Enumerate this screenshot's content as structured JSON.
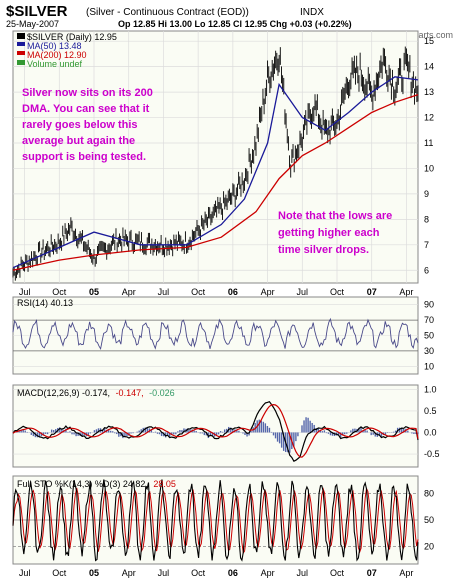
{
  "header": {
    "symbol": "$SILVER",
    "description": "(Silver - Continuous Contract (EOD))",
    "exchange": "INDX",
    "date": "25-May-2007",
    "quote": "Op 12.85  Hi 13.00  Lo 12.85  Cl 12.95  Chg +0.03 (+0.22%)",
    "watermark": "© StockCharts.com",
    "chg_color": "#0000cc"
  },
  "price_panel": {
    "legend": [
      {
        "text": "$SILVER (Daily) 12.95",
        "color": "#000000"
      },
      {
        "text": "MA(50) 13.48",
        "color": "#1a1a99"
      },
      {
        "text": "MA(200) 12.90",
        "color": "#cc0000"
      },
      {
        "text": "Volume undef",
        "color": "#339933"
      }
    ],
    "annotation_1": [
      "Silver now sits on its 200",
      "DMA. You can see that it",
      "rarely goes below this",
      "average but again the",
      "support is being tested."
    ],
    "annotation_2": [
      "Note that the lows are",
      "getting higher each",
      "time silver drops."
    ],
    "annotation_color": "#cc00cc",
    "y_ticks": [
      "6",
      "7",
      "8",
      "9",
      "10",
      "11",
      "12",
      "13",
      "14",
      "15"
    ]
  },
  "x_labels": [
    "Jul",
    "Oct",
    "05",
    "Apr",
    "Jul",
    "Oct",
    "06",
    "Apr",
    "Jul",
    "Oct",
    "07",
    "Apr"
  ],
  "rsi_panel": {
    "label": "RSI(14) 40.13",
    "y_ticks": [
      "90",
      "70",
      "50",
      "30",
      "10"
    ]
  },
  "macd_panel": {
    "label_prefix": "MACD(12,26,9) -0.174,",
    "label_signal": "-0.147,",
    "label_hist": "-0.026",
    "signal_color": "#cc0000",
    "hist_color": "#339966",
    "y_ticks": [
      "1.0",
      "0.5",
      "0.0",
      "-0.5"
    ]
  },
  "sto_panel": {
    "label_prefix": "Full STO %K(14,3) %D(3) 24.82,",
    "label_d": "28.05",
    "d_color": "#cc0000",
    "y_ticks": [
      "80",
      "50",
      "20"
    ]
  },
  "chart_data": {
    "type": "line",
    "title": "$SILVER (Silver - Continuous Contract (EOD))",
    "x_range": [
      "2004-06",
      "2007-05"
    ],
    "price_ylim": [
      5.5,
      15.4
    ],
    "series": [
      {
        "name": "$SILVER (Daily)",
        "x": [
          "2004-06",
          "2004-08",
          "2004-10",
          "2004-11",
          "2005-01",
          "2005-03",
          "2005-05",
          "2005-07",
          "2005-09",
          "2005-11",
          "2006-01",
          "2006-02",
          "2006-03",
          "2006-04",
          "2006-05",
          "2006-06",
          "2006-07",
          "2006-08",
          "2006-09",
          "2006-10",
          "2006-11",
          "2006-12",
          "2007-01",
          "2007-02",
          "2007-03",
          "2007-04",
          "2007-05"
        ],
        "values": [
          5.9,
          6.6,
          7.1,
          7.7,
          6.5,
          7.2,
          7.1,
          7.0,
          7.1,
          8.0,
          8.9,
          9.6,
          11.0,
          13.5,
          14.6,
          10.2,
          11.2,
          12.5,
          11.4,
          11.8,
          13.5,
          13.8,
          12.9,
          14.3,
          13.2,
          14.0,
          12.95
        ]
      },
      {
        "name": "MA(50)",
        "x": [
          "2004-06",
          "2004-10",
          "2005-01",
          "2005-05",
          "2005-09",
          "2005-12",
          "2006-02",
          "2006-04",
          "2006-05",
          "2006-07",
          "2006-09",
          "2006-11",
          "2007-01",
          "2007-03",
          "2007-05"
        ],
        "values": [
          6.1,
          6.9,
          7.5,
          7.0,
          7.0,
          7.8,
          8.8,
          11.0,
          13.3,
          12.0,
          11.5,
          12.2,
          13.0,
          13.6,
          13.48
        ]
      },
      {
        "name": "MA(200)",
        "x": [
          "2004-06",
          "2004-10",
          "2005-01",
          "2005-05",
          "2005-09",
          "2005-12",
          "2006-03",
          "2006-05",
          "2006-07",
          "2006-09",
          "2006-11",
          "2007-01",
          "2007-03",
          "2007-05"
        ],
        "values": [
          6.0,
          6.4,
          6.6,
          6.8,
          6.9,
          7.3,
          8.3,
          9.6,
          10.5,
          11.0,
          11.6,
          12.2,
          12.6,
          12.9
        ]
      }
    ],
    "rsi": {
      "ylim": [
        0,
        100
      ],
      "last": 40.13,
      "levels": [
        70,
        30
      ]
    },
    "macd": {
      "ylim": [
        -0.8,
        1.1
      ],
      "macd": -0.174,
      "signal": -0.147,
      "histogram": -0.026
    },
    "full_sto": {
      "ylim": [
        0,
        100
      ],
      "k": 24.82,
      "d": 28.05,
      "levels": [
        80,
        20
      ]
    }
  }
}
